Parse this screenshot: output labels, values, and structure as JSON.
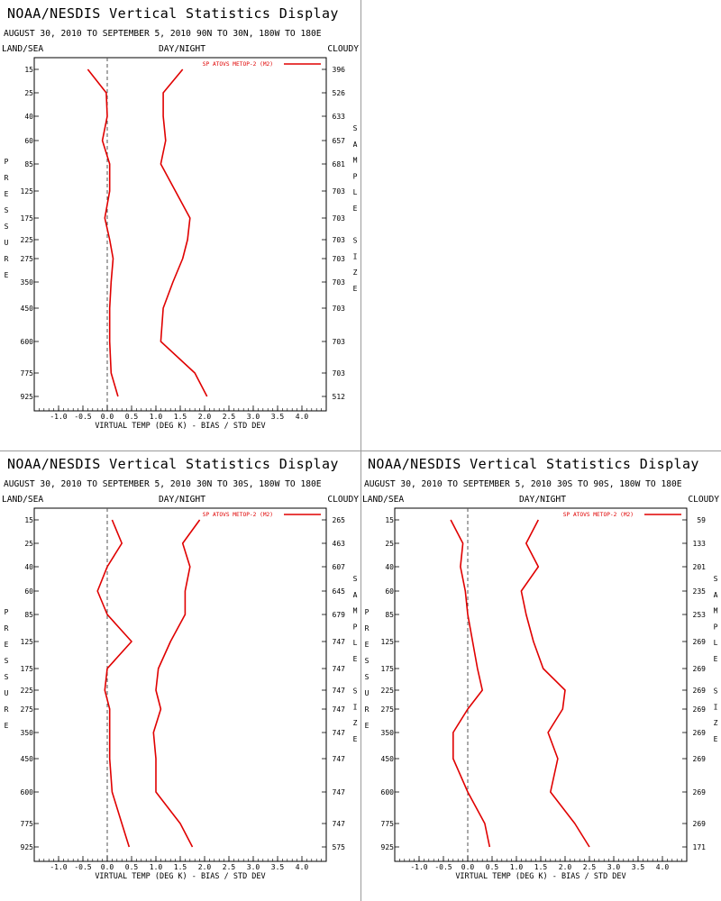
{
  "app_title": "NOAA/NESDIS Vertical Statistics Display",
  "date_range": "AUGUST 30, 2010 TO SEPTEMBER 5, 2010",
  "header_labels": {
    "left": "LAND/SEA",
    "center": "DAY/NIGHT",
    "right": "CLOUDY"
  },
  "y_axis_title": "PRESSURE",
  "right_axis_title": "SAMPLE SIZE",
  "x_axis_title": "VIRTUAL TEMP (DEG K) - BIAS / STD DEV",
  "legend_label": "SP ATOVS METOP-2 (M2)",
  "colors": {
    "series": "#e00000",
    "zero_line": "#555555",
    "text": "#000000",
    "frame": "#000000"
  },
  "chart_data": [
    {
      "type": "line",
      "region": "90N TO 30N, 180W TO 180E",
      "xlim": [
        -1.5,
        4.5
      ],
      "x_ticks": [
        "-1.0",
        "-0.5",
        "0.0",
        "0.5",
        "1.0",
        "1.5",
        "2.0",
        "2.5",
        "3.0",
        "3.5",
        "4.0"
      ],
      "x_tick_values": [
        -1.0,
        -0.5,
        0.0,
        0.5,
        1.0,
        1.5,
        2.0,
        2.5,
        3.0,
        3.5,
        4.0
      ],
      "pressure_levels": [
        "15",
        "25",
        "40",
        "60",
        "85",
        "125",
        "175",
        "225",
        "275",
        "350",
        "450",
        "600",
        "775",
        "925"
      ],
      "sample_sizes": [
        "396",
        "526",
        "633",
        "657",
        "681",
        "703",
        "703",
        "703",
        "703",
        "703",
        "703",
        "703",
        "703",
        "512"
      ],
      "series": [
        {
          "name": "BIAS",
          "values": [
            -0.4,
            -0.02,
            0.0,
            -0.1,
            0.05,
            0.05,
            -0.05,
            0.05,
            0.12,
            0.08,
            0.05,
            0.05,
            0.08,
            0.22
          ]
        },
        {
          "name": "STD DEV",
          "values": [
            1.55,
            1.15,
            1.15,
            1.2,
            1.1,
            1.4,
            1.7,
            1.65,
            1.55,
            1.35,
            1.15,
            1.1,
            1.8,
            2.05
          ]
        }
      ]
    },
    {
      "type": "line",
      "region": "30N TO 30S, 180W TO 180E",
      "xlim": [
        -1.5,
        4.5
      ],
      "x_ticks": [
        "-1.0",
        "-0.5",
        "0.0",
        "0.5",
        "1.0",
        "1.5",
        "2.0",
        "2.5",
        "3.0",
        "3.5",
        "4.0"
      ],
      "x_tick_values": [
        -1.0,
        -0.5,
        0.0,
        0.5,
        1.0,
        1.5,
        2.0,
        2.5,
        3.0,
        3.5,
        4.0
      ],
      "pressure_levels": [
        "15",
        "25",
        "40",
        "60",
        "85",
        "125",
        "175",
        "225",
        "275",
        "350",
        "450",
        "600",
        "775",
        "925"
      ],
      "sample_sizes": [
        "265",
        "463",
        "607",
        "645",
        "679",
        "747",
        "747",
        "747",
        "747",
        "747",
        "747",
        "747",
        "747",
        "575"
      ],
      "series": [
        {
          "name": "BIAS",
          "values": [
            0.1,
            0.3,
            0.0,
            -0.2,
            0.0,
            0.5,
            0.0,
            -0.05,
            0.05,
            0.05,
            0.05,
            0.1,
            0.3,
            0.45
          ]
        },
        {
          "name": "STD DEV",
          "values": [
            1.9,
            1.55,
            1.7,
            1.6,
            1.6,
            1.3,
            1.05,
            1.0,
            1.1,
            0.95,
            1.0,
            1.0,
            1.5,
            1.75
          ]
        }
      ]
    },
    {
      "type": "line",
      "region": "30S TO 90S, 180W TO 180E",
      "xlim": [
        -1.5,
        4.5
      ],
      "x_ticks": [
        "-1.0",
        "-0.5",
        "0.0",
        "0.5",
        "1.0",
        "1.5",
        "2.0",
        "2.5",
        "3.0",
        "3.5",
        "4.0"
      ],
      "x_tick_values": [
        -1.0,
        -0.5,
        0.0,
        0.5,
        1.0,
        1.5,
        2.0,
        2.5,
        3.0,
        3.5,
        4.0
      ],
      "pressure_levels": [
        "15",
        "25",
        "40",
        "60",
        "85",
        "125",
        "175",
        "225",
        "275",
        "350",
        "450",
        "600",
        "775",
        "925"
      ],
      "sample_sizes": [
        "59",
        "133",
        "201",
        "235",
        "253",
        "269",
        "269",
        "269",
        "269",
        "269",
        "269",
        "269",
        "269",
        "171"
      ],
      "series": [
        {
          "name": "BIAS",
          "values": [
            -0.35,
            -0.1,
            -0.15,
            -0.05,
            0.0,
            0.1,
            0.2,
            0.3,
            0.0,
            -0.3,
            -0.3,
            0.0,
            0.35,
            0.45
          ]
        },
        {
          "name": "STD DEV",
          "values": [
            1.45,
            1.2,
            1.45,
            1.1,
            1.2,
            1.35,
            1.55,
            2.0,
            1.95,
            1.65,
            1.85,
            1.7,
            2.2,
            2.5
          ]
        }
      ]
    }
  ]
}
